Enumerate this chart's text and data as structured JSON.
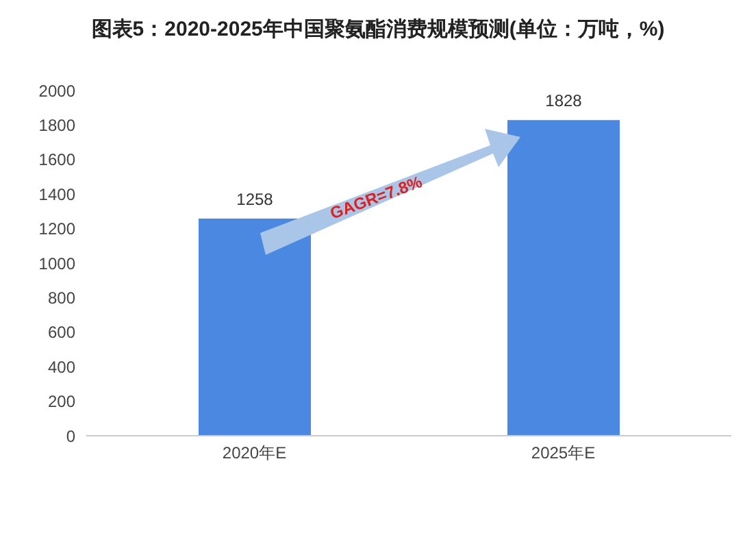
{
  "chart_data": {
    "type": "bar",
    "title": "图表5：2020-2025年中国聚氨酯消费规模预测(单位：万吨，%)",
    "categories": [
      "2020年E",
      "2025年E"
    ],
    "values": [
      1258,
      1828
    ],
    "color": "#4a88e2",
    "ylim": [
      0,
      2000
    ],
    "yticks": [
      0,
      200,
      400,
      600,
      800,
      1000,
      1200,
      1400,
      1600,
      1800,
      2000
    ],
    "data_labels": true,
    "annotations": [
      "GAGR=7.8%"
    ]
  }
}
